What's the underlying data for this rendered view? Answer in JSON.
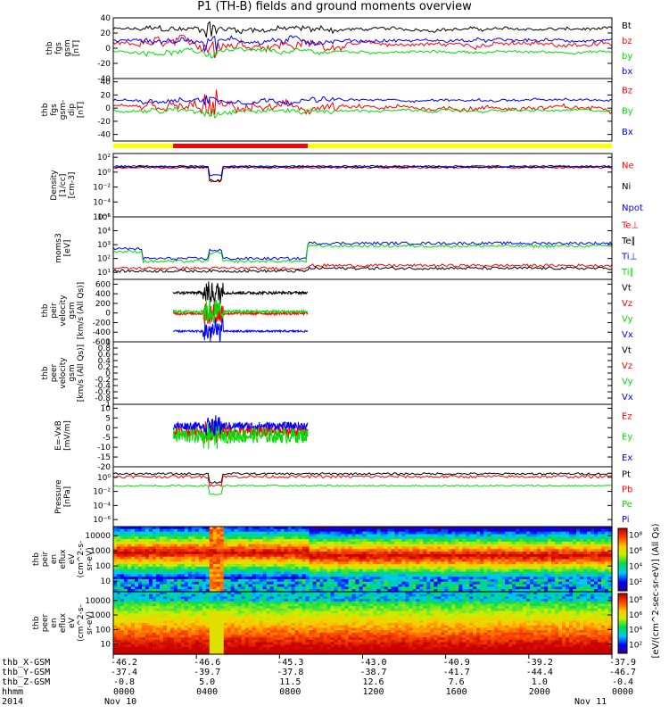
{
  "title": "P1 (TH-B) fields and ground moments overview",
  "colors": {
    "black": "#000000",
    "red": "#ff0000",
    "green": "#00dd00",
    "blue": "#0000ff",
    "yellow": "#ffff00",
    "frame": "#000000"
  },
  "chart_data": [
    {
      "type": "line",
      "ylabel": [
        "thb",
        "fgs",
        "gsm",
        "[nT]"
      ],
      "ylim": [
        -40,
        40
      ],
      "yticks": [
        40,
        20,
        0,
        -20,
        -40
      ],
      "series": [
        {
          "name": "Bt",
          "color": "black",
          "pattern": "mag",
          "base": 25,
          "amp": 8
        },
        {
          "name": "bz",
          "color": "red",
          "pattern": "mag",
          "base": 5,
          "amp": 12
        },
        {
          "name": "by",
          "color": "green",
          "pattern": "mag",
          "base": -5,
          "amp": 6
        },
        {
          "name": "bx",
          "color": "blue",
          "pattern": "mag",
          "base": 10,
          "amp": 8
        }
      ]
    },
    {
      "type": "line",
      "ylabel": [
        "thb",
        "fgs",
        "gsm-",
        "dip",
        "[nT]"
      ],
      "ylim": [
        -50,
        45
      ],
      "yticks": [
        40,
        20,
        0,
        -20,
        -40
      ],
      "series": [
        {
          "name": "Bz",
          "color": "red",
          "pattern": "mag",
          "base": 0,
          "amp": 14
        },
        {
          "name": "By",
          "color": "green",
          "pattern": "mag",
          "base": -4,
          "amp": 7
        },
        {
          "name": "Bx",
          "color": "blue",
          "pattern": "mag",
          "base": 12,
          "amp": 7
        }
      ]
    },
    {
      "type": "line",
      "ylabel": [
        "Density",
        "[1/cc]",
        "[cm-3]"
      ],
      "ylim": [
        -6,
        2.5
      ],
      "log": true,
      "yticks": [
        2,
        0,
        -2,
        -4,
        -6
      ],
      "series": [
        {
          "name": "Ne",
          "color": "red",
          "pattern": "dens",
          "base": 0.6,
          "amp": 0.2
        },
        {
          "name": "Ni",
          "color": "black",
          "pattern": "dens",
          "base": 0.7,
          "amp": 0.2
        },
        {
          "name": "Npot",
          "color": "blue",
          "pattern": "flat",
          "base": 0.8,
          "amp": 0.1
        }
      ]
    },
    {
      "type": "line",
      "ylabel": [
        "moms3",
        "[eV]"
      ],
      "ylim": [
        0.5,
        5
      ],
      "log": true,
      "yticks": [
        1,
        2,
        3,
        4,
        5
      ],
      "series": [
        {
          "name": "Te⊥",
          "color": "red",
          "pattern": "temp_lo",
          "base": 1.3,
          "amp": 0.1
        },
        {
          "name": "Te∥",
          "color": "black",
          "pattern": "temp_lo",
          "base": 1.1,
          "amp": 0.1
        },
        {
          "name": "Ti⊥",
          "color": "blue",
          "pattern": "temp_hi",
          "base": 3.1,
          "amp": 0.1
        },
        {
          "name": "Ti∥",
          "color": "green",
          "pattern": "temp_hi",
          "base": 2.9,
          "amp": 0.1
        }
      ]
    },
    {
      "type": "line",
      "ylabel": [
        "thb",
        "peir",
        "velocity",
        "gsm",
        "[km/s (All Qs)]"
      ],
      "ylim": [
        -600,
        700
      ],
      "yticks": [
        600,
        400,
        200,
        0,
        -200,
        -400,
        -600
      ],
      "xrange": [
        0.12,
        0.39
      ],
      "series": [
        {
          "name": "Vt",
          "color": "black",
          "pattern": "vel",
          "base": 420,
          "amp": 30
        },
        {
          "name": "Vz",
          "color": "red",
          "pattern": "vel",
          "base": -10,
          "amp": 30
        },
        {
          "name": "Vy",
          "color": "green",
          "pattern": "vel",
          "base": 30,
          "amp": 30
        },
        {
          "name": "Vx",
          "color": "blue",
          "pattern": "vel",
          "base": -380,
          "amp": 20
        }
      ]
    },
    {
      "type": "line",
      "ylabel": [
        "thb",
        "peer",
        "velocity",
        "gsm",
        "[km/s (All Qs)]"
      ],
      "ylim": [
        -1,
        1
      ],
      "yticks": [
        1,
        0.8,
        0.6,
        0.4,
        0.2,
        0,
        -0.2,
        -0.4,
        -0.6,
        -0.8,
        -1
      ],
      "series": [
        {
          "name": "Vt",
          "color": "black",
          "pattern": "none"
        },
        {
          "name": "Vz",
          "color": "red",
          "pattern": "none"
        },
        {
          "name": "Vy",
          "color": "green",
          "pattern": "none"
        },
        {
          "name": "Vx",
          "color": "blue",
          "pattern": "none"
        }
      ]
    },
    {
      "type": "line",
      "ylabel": [
        "E=-VxB",
        "[mV/m]"
      ],
      "ylim": [
        -20,
        12
      ],
      "yticks": [
        10,
        5,
        0,
        -5,
        -10,
        -15,
        -20
      ],
      "xrange": [
        0.12,
        0.39
      ],
      "series": [
        {
          "name": "Ez",
          "color": "red",
          "pattern": "efield",
          "base": -2,
          "amp": 3
        },
        {
          "name": "Ey",
          "color": "green",
          "pattern": "efield",
          "base": -4,
          "amp": 4
        },
        {
          "name": "Ex",
          "color": "blue",
          "pattern": "efield",
          "base": 1,
          "amp": 2
        }
      ]
    },
    {
      "type": "line",
      "ylabel": [
        "Pressure",
        "[nPa]"
      ],
      "ylim": [
        -7,
        1.5
      ],
      "log": true,
      "yticks": [
        0,
        -2,
        -4,
        -6
      ],
      "series": [
        {
          "name": "Pt",
          "color": "black",
          "pattern": "flat",
          "base": 0.5,
          "amp": 0.15
        },
        {
          "name": "Pb",
          "color": "red",
          "pattern": "flat",
          "base": 0.1,
          "amp": 0.2
        },
        {
          "name": "Pe",
          "color": "green",
          "pattern": "flat",
          "base": -1.2,
          "amp": 0.1
        },
        {
          "name": "Pi",
          "color": "blue",
          "pattern": "flat",
          "base": -7,
          "amp": 0
        }
      ]
    },
    {
      "type": "heatmap",
      "ylabel": [
        "thb",
        "peir",
        "en",
        "eflux",
        "eV",
        "(cm^2-s-",
        "sr-eV)"
      ],
      "ylim": [
        1,
        4.3
      ],
      "log": true,
      "yticks": [
        "10000",
        "1000",
        "100",
        "10"
      ],
      "kind": "ion"
    },
    {
      "type": "heatmap",
      "ylabel": [
        "thb",
        "peer",
        "en",
        "eflux",
        "eV",
        "(cm^2-s-",
        "sr-eV)"
      ],
      "ylim": [
        1,
        4.3
      ],
      "log": true,
      "yticks": [
        "10000",
        "1000",
        "100",
        "10"
      ],
      "kind": "elec"
    }
  ],
  "colorbar": {
    "label": "[eV/(cm^2-sec-sr-eV)] (All Qs)",
    "ticks": [
      "8",
      "6",
      "4",
      "2"
    ]
  },
  "colorbar2": {
    "ticks": [
      "8",
      "6",
      "4",
      "2"
    ]
  },
  "status_bar": {
    "colors": [
      "yellow",
      "red",
      "yellow"
    ],
    "splits": [
      0.12,
      0.39
    ]
  },
  "xaxis": {
    "rows": [
      {
        "label": "thb_X-GSM",
        "values": [
          "-46.2",
          "-46.6",
          "-45.3",
          "-43.0",
          "-40.9",
          "-39.2",
          "-37.9"
        ]
      },
      {
        "label": "thb_Y-GSM",
        "values": [
          "-37.4",
          "-39.7",
          "-37.8",
          "-38.7",
          "-41.7",
          "-44.4",
          "-46.7"
        ]
      },
      {
        "label": "thb_Z-GSM",
        "values": [
          "-0.8",
          "5.0",
          "11.5",
          "12.6",
          "7.6",
          "1.0",
          "-0.4"
        ]
      },
      {
        "label": "hhmm",
        "values": [
          "0000",
          "0400",
          "0800",
          "1200",
          "1600",
          "2000",
          "0000"
        ]
      }
    ],
    "year": "2014",
    "date_start": "Nov 10",
    "date_end": "Nov 11"
  }
}
